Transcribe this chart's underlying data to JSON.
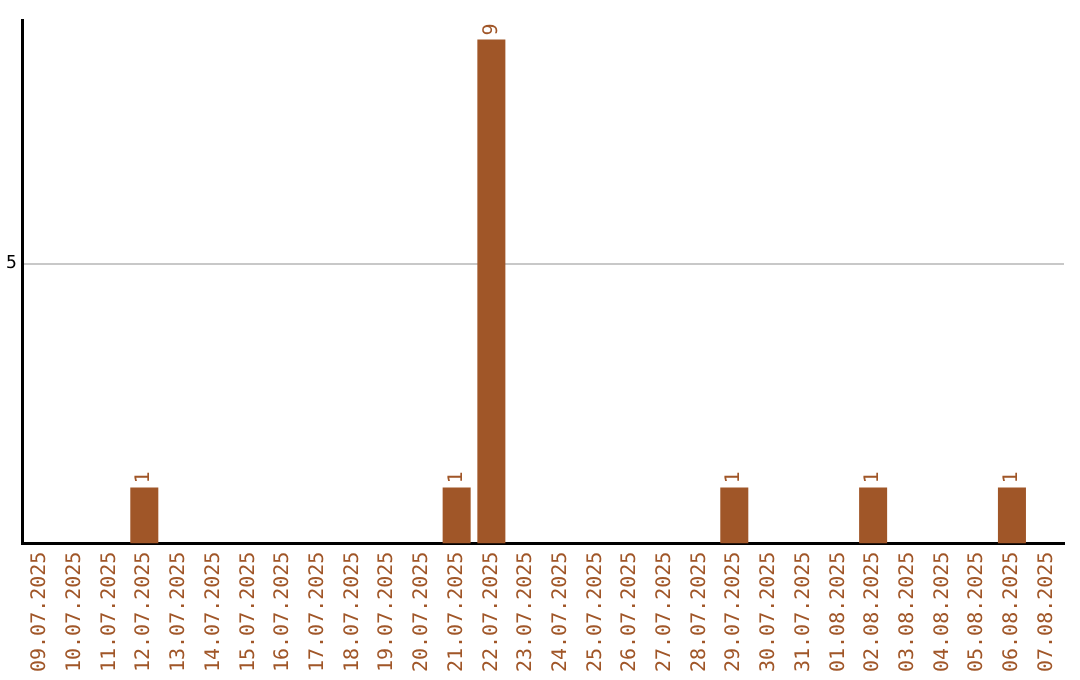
{
  "chart_data": {
    "type": "bar",
    "categories": [
      "09.07.2025",
      "10.07.2025",
      "11.07.2025",
      "12.07.2025",
      "13.07.2025",
      "14.07.2025",
      "15.07.2025",
      "16.07.2025",
      "17.07.2025",
      "18.07.2025",
      "19.07.2025",
      "20.07.2025",
      "21.07.2025",
      "22.07.2025",
      "23.07.2025",
      "24.07.2025",
      "25.07.2025",
      "26.07.2025",
      "27.07.2025",
      "28.07.2025",
      "29.07.2025",
      "30.07.2025",
      "31.07.2025",
      "01.08.2025",
      "02.08.2025",
      "03.08.2025",
      "04.08.2025",
      "05.08.2025",
      "06.08.2025",
      "07.08.2025"
    ],
    "values": [
      0,
      0,
      0,
      1,
      0,
      0,
      0,
      0,
      0,
      0,
      0,
      0,
      1,
      9,
      0,
      0,
      0,
      0,
      0,
      0,
      1,
      0,
      0,
      0,
      1,
      0,
      0,
      0,
      1,
      0
    ],
    "value_labels": [
      null,
      null,
      null,
      "1",
      null,
      null,
      null,
      null,
      null,
      null,
      null,
      null,
      "1",
      "9",
      null,
      null,
      null,
      null,
      null,
      null,
      "1",
      null,
      null,
      null,
      "1",
      null,
      null,
      null,
      "1",
      null
    ],
    "color": "#a05628",
    "ylim": [
      0,
      9.35
    ],
    "yticks": [
      5
    ],
    "grid": "y",
    "legend": false
  }
}
